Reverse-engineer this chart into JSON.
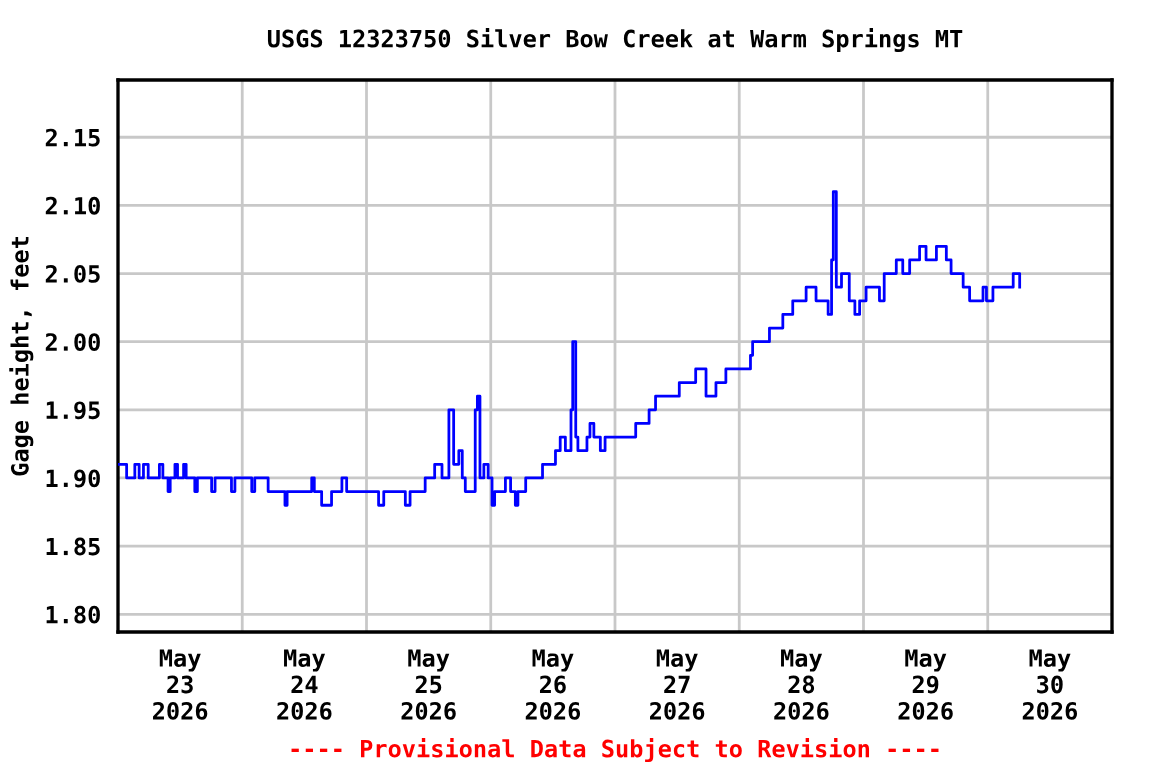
{
  "chart_data": {
    "type": "step",
    "title": "USGS 12323750 Silver Bow Creek at Warm Springs MT",
    "ylabel": "Gage height, feet",
    "annotations": [
      "---- Provisional Data Subject to Revision ----"
    ],
    "xlim": [
      "2026-05-23",
      "2026-05-31"
    ],
    "xticks": [
      {
        "value": "2026-05-24",
        "label": null
      },
      {
        "value": "2026-05-25",
        "label": null
      },
      {
        "value": "2026-05-26",
        "label": null
      },
      {
        "value": "2026-05-27",
        "label": null
      },
      {
        "value": "2026-05-28",
        "label": null
      },
      {
        "value": "2026-05-29",
        "label": null
      },
      {
        "value": "2026-05-30",
        "label": null
      },
      {
        "value": "2026-05-23T12:00",
        "label": "May\n23\n2026"
      },
      {
        "value": "2026-05-24T12:00",
        "label": "May\n24\n2026"
      },
      {
        "value": "2026-05-25T12:00",
        "label": "May\n25\n2026"
      },
      {
        "value": "2026-05-26T12:00",
        "label": "May\n26\n2026"
      },
      {
        "value": "2026-05-27T12:00",
        "label": "May\n27\n2026"
      },
      {
        "value": "2026-05-28T12:00",
        "label": "May\n28\n2026"
      },
      {
        "value": "2026-05-29T12:00",
        "label": "May\n29\n2026"
      },
      {
        "value": "2026-05-30T12:00",
        "label": "May\n30\n2026"
      }
    ],
    "ylim": [
      1.787,
      2.192
    ],
    "yticks": [
      {
        "value": 1.8,
        "label": "1.80"
      },
      {
        "value": 1.85,
        "label": "1.85"
      },
      {
        "value": 1.9,
        "label": "1.90"
      },
      {
        "value": 1.95,
        "label": "1.95"
      },
      {
        "value": 2.0,
        "label": "2.00"
      },
      {
        "value": 2.05,
        "label": "2.05"
      },
      {
        "value": 2.1,
        "label": "2.10"
      },
      {
        "value": 2.15,
        "label": "2.15"
      }
    ],
    "grid": true,
    "legend": false,
    "series": [
      {
        "color": "#0000ff",
        "x": [
          "2026-05-23T00:00",
          "2026-05-23T01:40",
          "2026-05-23T03:15",
          "2026-05-23T04:05",
          "2026-05-23T04:55",
          "2026-05-23T05:50",
          "2026-05-23T08:00",
          "2026-05-23T08:40",
          "2026-05-23T09:40",
          "2026-05-23T10:05",
          "2026-05-23T11:00",
          "2026-05-23T11:30",
          "2026-05-23T12:40",
          "2026-05-23T13:10",
          "2026-05-23T14:50",
          "2026-05-23T15:20",
          "2026-05-23T18:05",
          "2026-05-23T18:45",
          "2026-05-23T21:55",
          "2026-05-23T22:35",
          "2026-05-24T01:50",
          "2026-05-24T02:25",
          "2026-05-24T05:00",
          "2026-05-24T08:15",
          "2026-05-24T08:40",
          "2026-05-24T13:25",
          "2026-05-24T13:55",
          "2026-05-24T15:20",
          "2026-05-24T17:15",
          "2026-05-24T19:15",
          "2026-05-24T20:10",
          "2026-05-25T02:20",
          "2026-05-25T03:20",
          "2026-05-25T07:30",
          "2026-05-25T08:25",
          "2026-05-25T11:20",
          "2026-05-25T13:10",
          "2026-05-25T14:35",
          "2026-05-25T15:55",
          "2026-05-25T16:50",
          "2026-05-25T17:50",
          "2026-05-25T18:30",
          "2026-05-25T19:05",
          "2026-05-25T21:00",
          "2026-05-25T21:25",
          "2026-05-25T21:55",
          "2026-05-25T22:40",
          "2026-05-25T23:30",
          "2026-05-26T00:15",
          "2026-05-26T00:45",
          "2026-05-26T02:50",
          "2026-05-26T03:50",
          "2026-05-26T04:45",
          "2026-05-26T05:15",
          "2026-05-26T06:45",
          "2026-05-26T10:00",
          "2026-05-26T12:30",
          "2026-05-26T13:25",
          "2026-05-26T14:25",
          "2026-05-26T15:30",
          "2026-05-26T15:50",
          "2026-05-26T16:25",
          "2026-05-26T16:50",
          "2026-05-26T18:35",
          "2026-05-26T19:10",
          "2026-05-26T19:55",
          "2026-05-26T21:10",
          "2026-05-26T22:05",
          "2026-05-27T04:00",
          "2026-05-27T06:35",
          "2026-05-27T07:50",
          "2026-05-27T12:25",
          "2026-05-27T15:35",
          "2026-05-27T17:35",
          "2026-05-27T19:30",
          "2026-05-27T21:25",
          "2026-05-28T02:10",
          "2026-05-28T02:35",
          "2026-05-28T05:50",
          "2026-05-28T08:25",
          "2026-05-28T10:20",
          "2026-05-28T12:55",
          "2026-05-28T14:50",
          "2026-05-28T17:10",
          "2026-05-28T17:50",
          "2026-05-28T18:10",
          "2026-05-28T18:45",
          "2026-05-28T19:45",
          "2026-05-28T21:15",
          "2026-05-28T22:20",
          "2026-05-28T23:15",
          "2026-05-29T00:30",
          "2026-05-29T03:05",
          "2026-05-29T04:00",
          "2026-05-29T06:20",
          "2026-05-29T07:35",
          "2026-05-29T08:55",
          "2026-05-29T10:50",
          "2026-05-29T12:05",
          "2026-05-29T14:05",
          "2026-05-29T16:00",
          "2026-05-29T16:55",
          "2026-05-29T19:15",
          "2026-05-29T20:30",
          "2026-05-29T23:05",
          "2026-05-29T23:45",
          "2026-05-30T01:00",
          "2026-05-30T04:55",
          "2026-05-30T06:10"
        ],
        "values": [
          1.91,
          1.9,
          1.91,
          1.9,
          1.91,
          1.9,
          1.91,
          1.9,
          1.89,
          1.9,
          1.91,
          1.9,
          1.91,
          1.9,
          1.89,
          1.9,
          1.89,
          1.9,
          1.89,
          1.9,
          1.89,
          1.9,
          1.89,
          1.88,
          1.89,
          1.9,
          1.89,
          1.88,
          1.89,
          1.9,
          1.89,
          1.88,
          1.89,
          1.88,
          1.89,
          1.9,
          1.91,
          1.9,
          1.95,
          1.91,
          1.92,
          1.9,
          1.89,
          1.95,
          1.96,
          1.9,
          1.91,
          1.9,
          1.88,
          1.89,
          1.9,
          1.89,
          1.88,
          1.89,
          1.9,
          1.91,
          1.92,
          1.93,
          1.92,
          1.95,
          2.0,
          1.93,
          1.92,
          1.93,
          1.94,
          1.93,
          1.92,
          1.93,
          1.94,
          1.95,
          1.96,
          1.97,
          1.98,
          1.96,
          1.97,
          1.98,
          1.99,
          2.0,
          2.01,
          2.02,
          2.03,
          2.04,
          2.03,
          2.02,
          2.06,
          2.11,
          2.04,
          2.05,
          2.03,
          2.02,
          2.03,
          2.04,
          2.03,
          2.05,
          2.06,
          2.05,
          2.06,
          2.07,
          2.06,
          2.07,
          2.06,
          2.05,
          2.04,
          2.03,
          2.04,
          2.03,
          2.04,
          2.05,
          2.04
        ]
      }
    ]
  }
}
